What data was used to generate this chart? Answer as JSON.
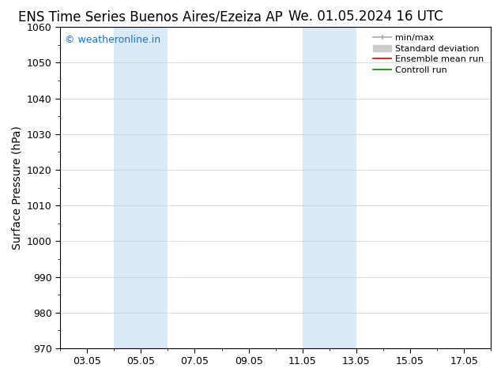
{
  "title_left": "ENS Time Series Buenos Aires/Ezeiza AP",
  "title_right": "We. 01.05.2024 16 UTC",
  "ylabel": "Surface Pressure (hPa)",
  "ylim": [
    970,
    1060
  ],
  "yticks": [
    970,
    980,
    990,
    1000,
    1010,
    1020,
    1030,
    1040,
    1050,
    1060
  ],
  "xlim_start": 2.0,
  "xlim_end": 18.0,
  "xtick_labels": [
    "03.05",
    "05.05",
    "07.05",
    "09.05",
    "11.05",
    "13.05",
    "15.05",
    "17.05"
  ],
  "xtick_positions": [
    3,
    5,
    7,
    9,
    11,
    13,
    15,
    17
  ],
  "shaded_bands": [
    {
      "x_start": 4.0,
      "x_end": 6.0
    },
    {
      "x_start": 11.0,
      "x_end": 13.0
    }
  ],
  "shaded_color": "#daeaf7",
  "watermark_text": "© weatheronline.in",
  "watermark_color": "#1a6fd4",
  "legend_items": [
    {
      "label": "min/max",
      "color": "#aaaaaa"
    },
    {
      "label": "Standard deviation",
      "color": "#cccccc"
    },
    {
      "label": "Ensemble mean run",
      "color": "#cc0000"
    },
    {
      "label": "Controll run",
      "color": "#008800"
    }
  ],
  "bg_color": "#ffffff",
  "grid_color": "#cccccc",
  "title_fontsize": 12,
  "axis_label_fontsize": 10,
  "tick_fontsize": 9
}
